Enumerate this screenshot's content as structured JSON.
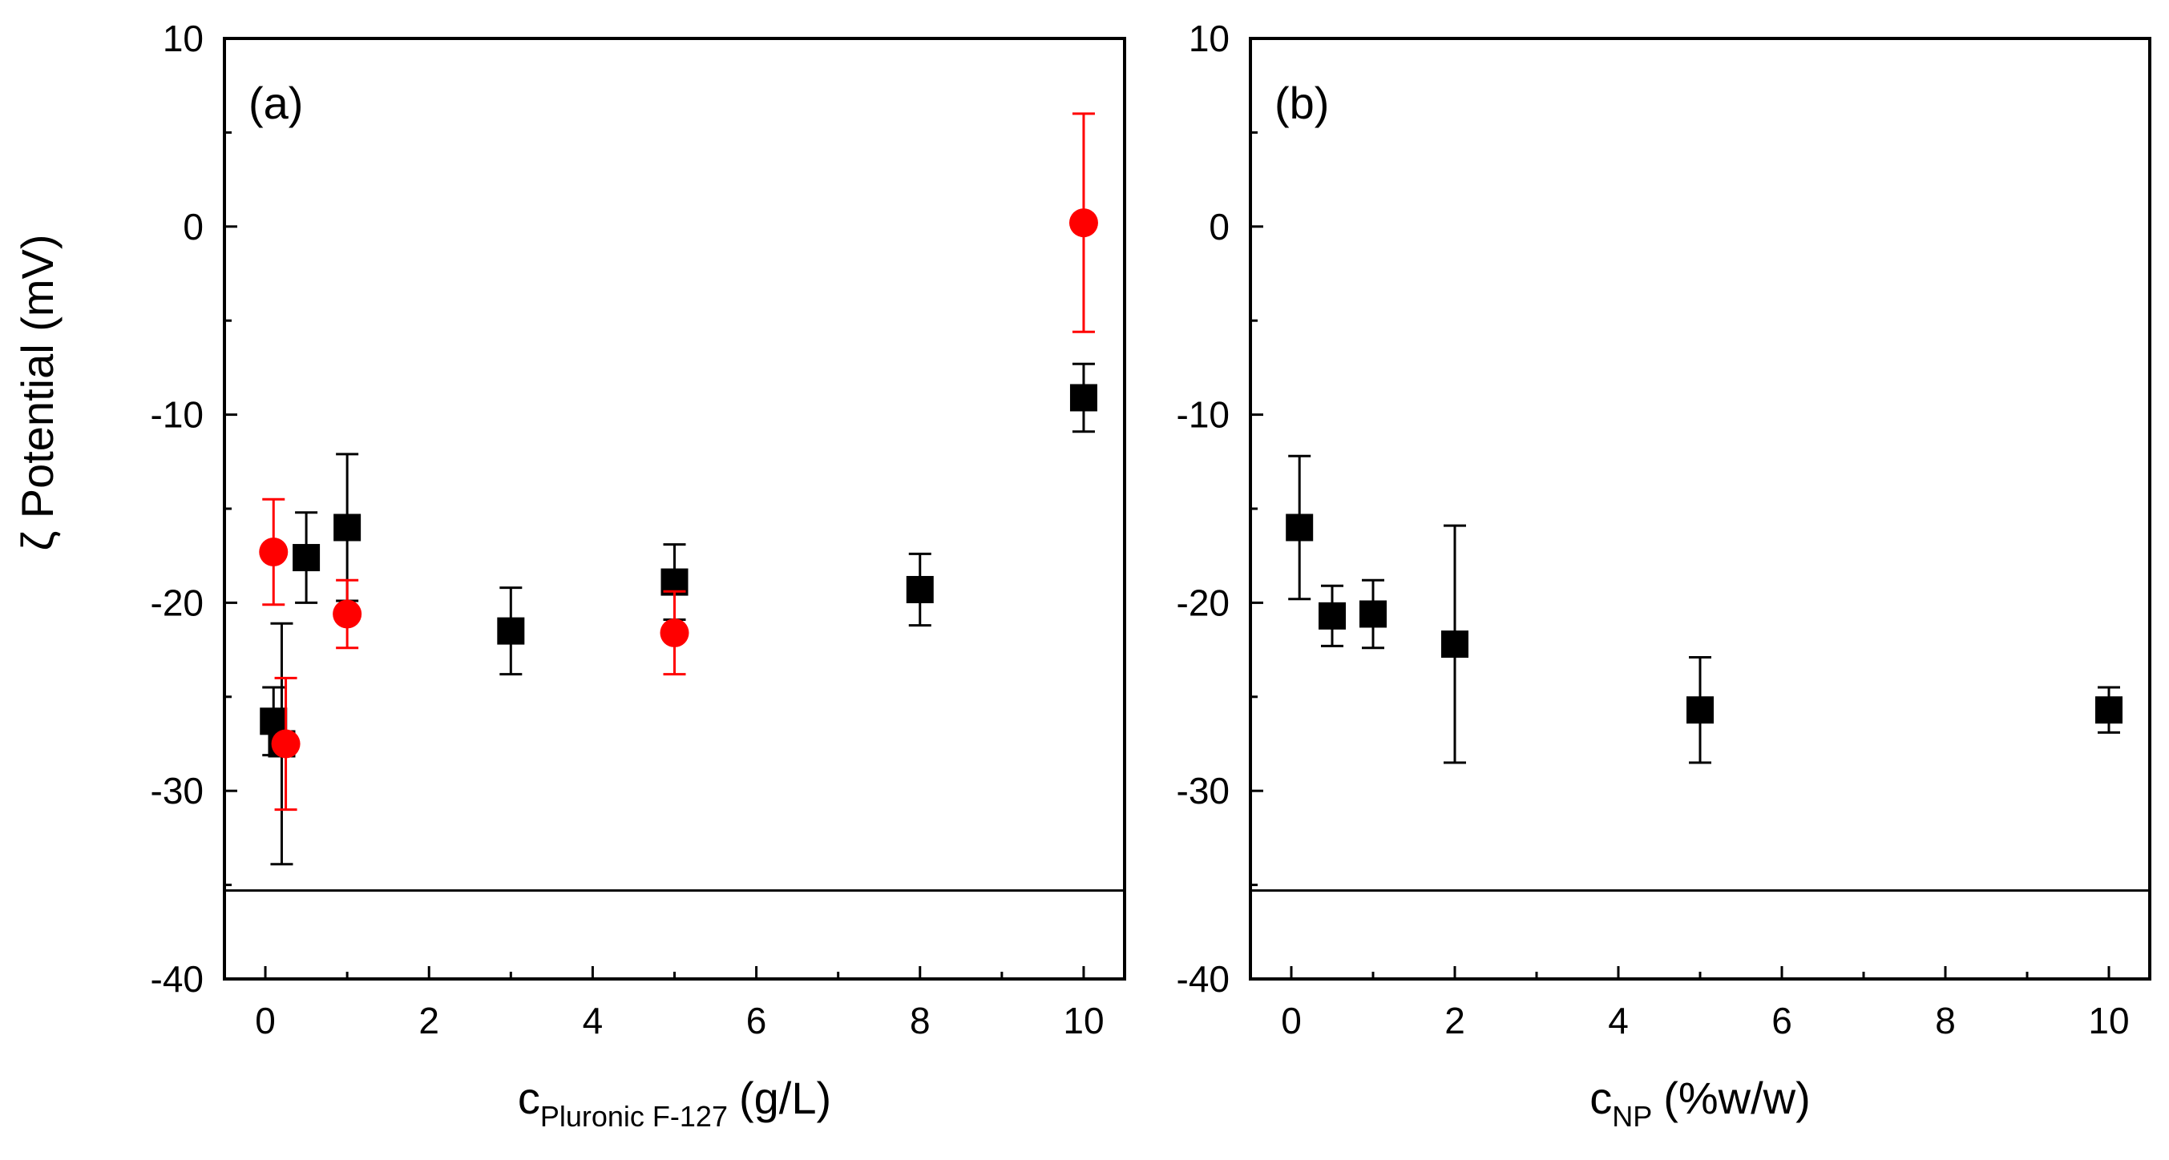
{
  "figure": {
    "ylabel": "ζ Potential (mV)",
    "colors": {
      "black_series": "#000000",
      "red_series": "#ff0000",
      "frame": "#000000"
    }
  },
  "chart_data": [
    {
      "type": "scatter",
      "panel_label": "(a)",
      "xlabel_main": "c",
      "xlabel_sub": "Pluronic F-127",
      "xlabel_unit": "(g/L)",
      "ylabel": "ζ Potential (mV)",
      "xlim": [
        -0.5,
        10.5
      ],
      "ylim": [
        -40,
        10
      ],
      "xticks": [
        0,
        2,
        4,
        6,
        8,
        10
      ],
      "yticks": [
        10,
        0,
        -10,
        -20,
        -30,
        -40
      ],
      "reference_line_y": -35.3,
      "grid": false,
      "series": [
        {
          "name": "black-squares",
          "marker": "square",
          "color": "#000000",
          "points": [
            {
              "x": 0.1,
              "y": -26.3,
              "err_low": 1.8,
              "err_high": 1.8
            },
            {
              "x": 0.2,
              "y": -27.5,
              "err_low": 6.4,
              "err_high": 6.4
            },
            {
              "x": 0.5,
              "y": -17.6,
              "err_low": 2.4,
              "err_high": 2.4
            },
            {
              "x": 1.0,
              "y": -16.0,
              "err_low": 3.9,
              "err_high": 3.9
            },
            {
              "x": 3.0,
              "y": -21.5,
              "err_low": 2.3,
              "err_high": 2.3
            },
            {
              "x": 5.0,
              "y": -18.9,
              "err_low": 2.0,
              "err_high": 2.0
            },
            {
              "x": 8.0,
              "y": -19.3,
              "err_low": 1.9,
              "err_high": 1.9
            },
            {
              "x": 10.0,
              "y": -9.1,
              "err_low": 1.8,
              "err_high": 1.8
            }
          ]
        },
        {
          "name": "red-circles",
          "marker": "circle",
          "color": "#ff0000",
          "points": [
            {
              "x": 0.1,
              "y": -17.3,
              "err_low": 2.8,
              "err_high": 2.8
            },
            {
              "x": 0.25,
              "y": -27.5,
              "err_low": 3.5,
              "err_high": 3.5
            },
            {
              "x": 1.0,
              "y": -20.6,
              "err_low": 1.8,
              "err_high": 1.8
            },
            {
              "x": 5.0,
              "y": -21.6,
              "err_low": 2.2,
              "err_high": 2.2
            },
            {
              "x": 10.0,
              "y": 0.2,
              "err_low": 5.8,
              "err_high": 5.8
            }
          ]
        }
      ]
    },
    {
      "type": "scatter",
      "panel_label": "(b)",
      "xlabel_main": "c",
      "xlabel_sub": "NP",
      "xlabel_unit": "(%w/w)",
      "ylabel": "",
      "xlim": [
        -0.5,
        10.5
      ],
      "ylim": [
        -40,
        10
      ],
      "xticks": [
        0,
        2,
        4,
        6,
        8,
        10
      ],
      "yticks": [
        10,
        0,
        -10,
        -20,
        -30,
        -40
      ],
      "reference_line_y": -35.3,
      "grid": false,
      "series": [
        {
          "name": "black-squares",
          "marker": "square",
          "color": "#000000",
          "points": [
            {
              "x": 0.1,
              "y": -16.0,
              "err_low": 3.8,
              "err_high": 3.8
            },
            {
              "x": 0.5,
              "y": -20.7,
              "err_low": 1.6,
              "err_high": 1.6
            },
            {
              "x": 1.0,
              "y": -20.6,
              "err_low": 1.8,
              "err_high": 1.8
            },
            {
              "x": 2.0,
              "y": -22.2,
              "err_low": 6.3,
              "err_high": 6.3
            },
            {
              "x": 5.0,
              "y": -25.7,
              "err_low": 2.8,
              "err_high": 2.8
            },
            {
              "x": 10.0,
              "y": -25.7,
              "err_low": 1.2,
              "err_high": 1.2
            }
          ]
        }
      ]
    }
  ]
}
